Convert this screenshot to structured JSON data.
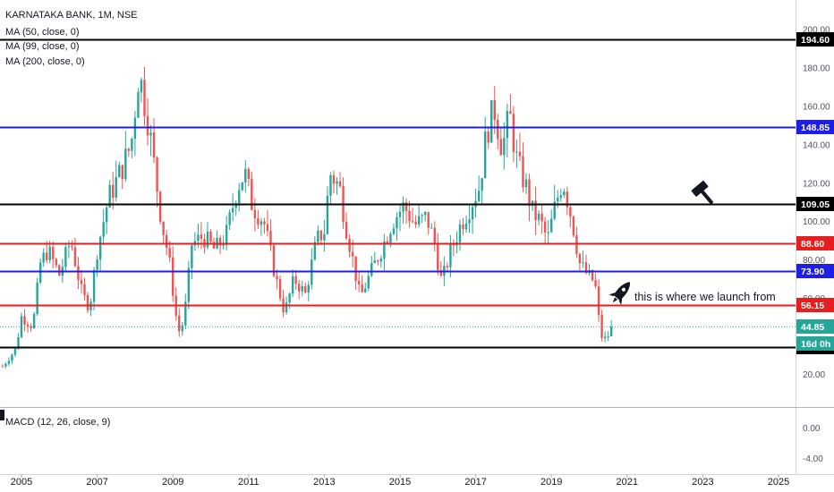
{
  "header": {
    "symbol_line": "KARNATAKA BANK, 1M, NSE",
    "indicators": [
      "MA (50, close, 0)",
      "MA (99, close, 0)",
      "MA (200, close, 0)"
    ],
    "macd_label": "MACD (12, 26, close, 9)"
  },
  "annotation": {
    "text": "this is where we launch from",
    "icon": "rocket-icon",
    "second_icon": "hammer-icon"
  },
  "chart_data": {
    "type": "candlestick",
    "title": "KARNATAKA BANK, 1M, NSE",
    "price_axis": {
      "ticks": [
        "200.00",
        "180.00",
        "160.00",
        "140.00",
        "120.00",
        "100.00",
        "80.00",
        "60.00",
        "20.00"
      ]
    },
    "macd_axis": {
      "ticks": [
        "0.00",
        "-4.00"
      ]
    },
    "x_ticks": [
      "2005",
      "2007",
      "2009",
      "2011",
      "2013",
      "2015",
      "2017",
      "2019",
      "2021",
      "2023",
      "2025"
    ],
    "levels": [
      {
        "label": "194.60",
        "value": 194.6,
        "color": "#000000"
      },
      {
        "label": "148.85",
        "value": 148.85,
        "color": "#1e1ee6"
      },
      {
        "label": "109.05",
        "value": 109.05,
        "color": "#000000"
      },
      {
        "label": "88.60",
        "value": 88.6,
        "color": "#e61e1e"
      },
      {
        "label": "73.90",
        "value": 73.9,
        "color": "#1e1ee6"
      },
      {
        "label": "56.15",
        "value": 56.15,
        "color": "#e61e1e"
      },
      {
        "label": "34.20",
        "value": 34.2,
        "color": "#000000"
      }
    ],
    "last_price": {
      "label": "44.85",
      "value": 44.85,
      "color": "#26a69a"
    },
    "countdown": {
      "label": "16d 0h",
      "color": "#26a69a"
    },
    "colors": {
      "up": "#26a69a",
      "down": "#ef5350"
    },
    "path": [
      [
        2004.5,
        24
      ],
      [
        2004.85,
        33
      ],
      [
        2005.0,
        50
      ],
      [
        2005.3,
        45
      ],
      [
        2005.5,
        78
      ],
      [
        2005.7,
        85
      ],
      [
        2006.0,
        72
      ],
      [
        2006.3,
        90
      ],
      [
        2006.6,
        62
      ],
      [
        2006.8,
        55
      ],
      [
        2007.0,
        85
      ],
      [
        2007.3,
        112
      ],
      [
        2007.6,
        125
      ],
      [
        2007.9,
        140
      ],
      [
        2008.1,
        178
      ],
      [
        2008.35,
        152
      ],
      [
        2008.7,
        100
      ],
      [
        2008.9,
        80
      ],
      [
        2009.1,
        48
      ],
      [
        2009.2,
        40
      ],
      [
        2009.35,
        58
      ],
      [
        2009.5,
        88
      ],
      [
        2009.8,
        92
      ],
      [
        2010.1,
        85
      ],
      [
        2010.4,
        92
      ],
      [
        2010.7,
        118
      ],
      [
        2010.9,
        125
      ],
      [
        2011.1,
        108
      ],
      [
        2011.4,
        100
      ],
      [
        2011.7,
        72
      ],
      [
        2011.95,
        52
      ],
      [
        2012.2,
        70
      ],
      [
        2012.5,
        62
      ],
      [
        2012.8,
        90
      ],
      [
        2013.0,
        95
      ],
      [
        2013.15,
        125
      ],
      [
        2013.4,
        118
      ],
      [
        2013.55,
        100
      ],
      [
        2013.75,
        80
      ],
      [
        2013.95,
        60
      ],
      [
        2014.2,
        72
      ],
      [
        2014.5,
        85
      ],
      [
        2014.8,
        100
      ],
      [
        2015.1,
        108
      ],
      [
        2015.4,
        98
      ],
      [
        2015.7,
        102
      ],
      [
        2015.9,
        90
      ],
      [
        2016.1,
        68
      ],
      [
        2016.3,
        82
      ],
      [
        2016.6,
        98
      ],
      [
        2016.9,
        110
      ],
      [
        2017.1,
        118
      ],
      [
        2017.3,
        148
      ],
      [
        2017.5,
        158
      ],
      [
        2017.7,
        138
      ],
      [
        2017.9,
        155
      ],
      [
        2018.1,
        130
      ],
      [
        2018.3,
        120
      ],
      [
        2018.5,
        105
      ],
      [
        2018.7,
        100
      ],
      [
        2018.9,
        90
      ],
      [
        2019.1,
        108
      ],
      [
        2019.3,
        122
      ],
      [
        2019.55,
        100
      ],
      [
        2019.75,
        78
      ],
      [
        2019.95,
        72
      ],
      [
        2020.15,
        68
      ],
      [
        2020.3,
        40
      ],
      [
        2020.45,
        38
      ],
      [
        2020.6,
        44.85
      ]
    ]
  }
}
